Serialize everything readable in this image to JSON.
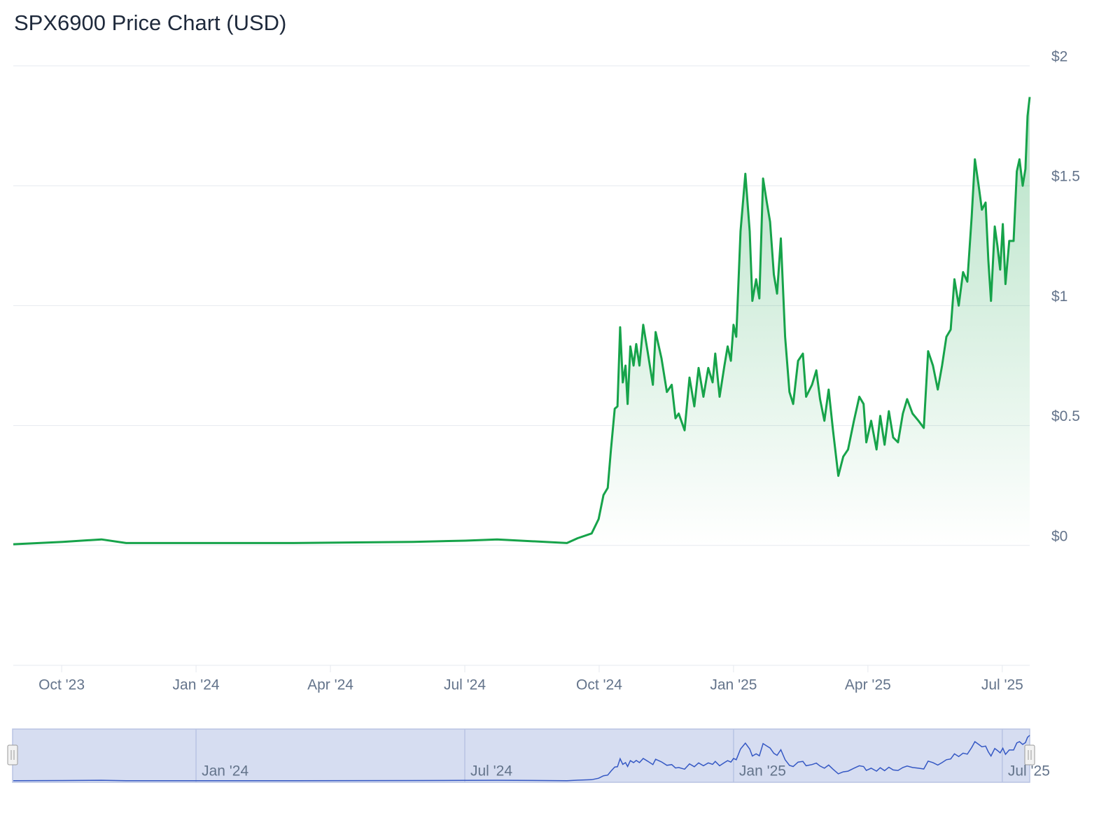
{
  "chart_data": {
    "type": "area",
    "title": "SPX6900 Price Chart (USD)",
    "color": "#16a34a",
    "x": [
      2023.66,
      2023.752,
      2023.824,
      2023.87,
      2024.026,
      2024.182,
      2024.404,
      2024.501,
      2024.56,
      2024.69,
      2024.71,
      2024.736,
      2024.749,
      2024.758,
      2024.766,
      2024.772,
      2024.779,
      2024.784,
      2024.789,
      2024.794,
      2024.799,
      2024.803,
      2024.808,
      2024.814,
      2024.819,
      2024.825,
      2024.832,
      2024.84,
      2024.85,
      2024.855,
      2024.866,
      2024.876,
      2024.885,
      2024.892,
      2024.898,
      2024.909,
      2024.918,
      2024.927,
      2024.935,
      2024.944,
      2024.953,
      2024.961,
      2024.966,
      2024.974,
      2024.983,
      2024.989,
      2024.995,
      2025.0,
      2025.005,
      2025.013,
      2025.022,
      2025.03,
      2025.035,
      2025.042,
      2025.048,
      2025.055,
      2025.062,
      2025.068,
      2025.075,
      2025.081,
      2025.088,
      2025.096,
      2025.104,
      2025.111,
      2025.12,
      2025.129,
      2025.135,
      2025.146,
      2025.154,
      2025.161,
      2025.169,
      2025.177,
      2025.185,
      2025.195,
      2025.204,
      2025.213,
      2025.224,
      2025.234,
      2025.242,
      2025.247,
      2025.256,
      2025.266,
      2025.273,
      2025.281,
      2025.289,
      2025.297,
      2025.306,
      2025.315,
      2025.323,
      2025.333,
      2025.344,
      2025.354,
      2025.362,
      2025.371,
      2025.38,
      2025.388,
      2025.396,
      2025.404,
      2025.411,
      2025.419,
      2025.427,
      2025.435,
      2025.443,
      2025.449,
      2025.456,
      2025.462,
      2025.469,
      2025.474,
      2025.479,
      2025.486,
      2025.491,
      2025.496,
      2025.501,
      2025.506,
      2025.513,
      2025.521,
      2025.527,
      2025.532,
      2025.538,
      2025.543,
      2025.547,
      2025.551
    ],
    "values": [
      0.005,
      0.015,
      0.025,
      0.01,
      0.01,
      0.01,
      0.015,
      0.02,
      0.025,
      0.01,
      0.03,
      0.05,
      0.11,
      0.21,
      0.24,
      0.4,
      0.57,
      0.58,
      0.91,
      0.68,
      0.75,
      0.59,
      0.83,
      0.75,
      0.84,
      0.75,
      0.92,
      0.81,
      0.67,
      0.89,
      0.78,
      0.64,
      0.67,
      0.53,
      0.55,
      0.48,
      0.7,
      0.58,
      0.74,
      0.62,
      0.74,
      0.68,
      0.8,
      0.62,
      0.75,
      0.83,
      0.77,
      0.92,
      0.87,
      1.31,
      1.55,
      1.31,
      1.02,
      1.11,
      1.03,
      1.53,
      1.43,
      1.35,
      1.13,
      1.05,
      1.28,
      0.87,
      0.64,
      0.59,
      0.77,
      0.8,
      0.62,
      0.67,
      0.73,
      0.61,
      0.52,
      0.65,
      0.48,
      0.29,
      0.37,
      0.4,
      0.52,
      0.62,
      0.59,
      0.43,
      0.52,
      0.4,
      0.54,
      0.42,
      0.56,
      0.45,
      0.43,
      0.55,
      0.61,
      0.55,
      0.52,
      0.49,
      0.81,
      0.75,
      0.65,
      0.75,
      0.87,
      0.9,
      1.11,
      1.0,
      1.14,
      1.1,
      1.37,
      1.61,
      1.5,
      1.4,
      1.43,
      1.19,
      1.02,
      1.33,
      1.25,
      1.15,
      1.34,
      1.09,
      1.27,
      1.27,
      1.56,
      1.61,
      1.5,
      1.57,
      1.79,
      1.87
    ],
    "xlim": [
      2023.66,
      2025.551
    ],
    "ylim": [
      -0.5,
      2
    ],
    "xticks": [
      {
        "value": 2023.75,
        "label": "Oct '23"
      },
      {
        "value": 2024.0,
        "label": "Jan '24"
      },
      {
        "value": 2024.25,
        "label": "Apr '24"
      },
      {
        "value": 2024.5,
        "label": "Jul '24"
      },
      {
        "value": 2024.75,
        "label": "Oct '24"
      },
      {
        "value": 2025.0,
        "label": "Jan '25"
      },
      {
        "value": 2025.25,
        "label": "Apr '25"
      },
      {
        "value": 2025.5,
        "label": "Jul '25"
      }
    ],
    "yticks": [
      {
        "value": 0,
        "label": "$0"
      },
      {
        "value": 0.5,
        "label": "$0.5"
      },
      {
        "value": 1,
        "label": "$1"
      },
      {
        "value": 1.5,
        "label": "$1.5"
      },
      {
        "value": 2,
        "label": "$2"
      }
    ],
    "grid": true,
    "navigator": {
      "xticks": [
        {
          "value": 2024.0,
          "label": "Jan '24"
        },
        {
          "value": 2024.5,
          "label": "Jul '24"
        },
        {
          "value": 2025.0,
          "label": "Jan '25"
        },
        {
          "value": 2025.5,
          "label": "Jul '25"
        }
      ]
    }
  }
}
